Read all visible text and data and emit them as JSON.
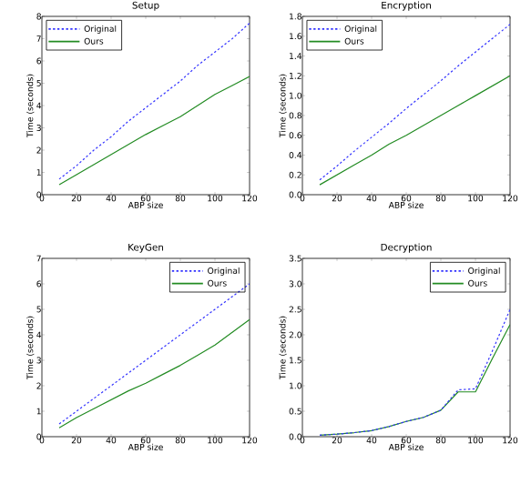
{
  "chart_data": [
    {
      "type": "line",
      "title": "Setup",
      "xlabel": "ABP size",
      "ylabel": "Time (seconds)",
      "x": [
        10,
        20,
        30,
        40,
        50,
        60,
        70,
        80,
        90,
        100,
        110,
        120
      ],
      "xlim": [
        0,
        120
      ],
      "xticks": [
        0,
        20,
        40,
        60,
        80,
        100,
        120
      ],
      "ylim": [
        0,
        8
      ],
      "yticks": [
        0,
        1,
        2,
        3,
        4,
        5,
        6,
        7,
        8
      ],
      "legend": "top left",
      "series": [
        {
          "name": "Original",
          "color": "#3333ff",
          "line_style": "dashed",
          "values": [
            0.7,
            1.3,
            2.0,
            2.6,
            3.3,
            3.9,
            4.5,
            5.1,
            5.8,
            6.4,
            7.0,
            7.7
          ]
        },
        {
          "name": "Ours",
          "color": "#228b22",
          "line_style": "solid",
          "values": [
            0.45,
            0.9,
            1.35,
            1.8,
            2.25,
            2.7,
            3.1,
            3.5,
            4.0,
            4.5,
            4.9,
            5.3
          ]
        }
      ]
    },
    {
      "type": "line",
      "title": "Encryption",
      "xlabel": "ABP size",
      "ylabel": "Time (seconds)",
      "x": [
        10,
        20,
        30,
        40,
        50,
        60,
        70,
        80,
        90,
        100,
        110,
        120
      ],
      "xlim": [
        0,
        120
      ],
      "xticks": [
        0,
        20,
        40,
        60,
        80,
        100,
        120
      ],
      "ylim": [
        0,
        1.8
      ],
      "yticks": [
        {
          "value": 0,
          "label": "0.0"
        },
        {
          "value": 0.2,
          "label": "0.2"
        },
        {
          "value": 0.4,
          "label": "0.4"
        },
        {
          "value": 0.6,
          "label": "0.6"
        },
        {
          "value": 0.8,
          "label": "0.8"
        },
        {
          "value": 1.0,
          "label": "1.0"
        },
        {
          "value": 1.2,
          "label": "1.2"
        },
        {
          "value": 1.4,
          "label": "1.4"
        },
        {
          "value": 1.6,
          "label": "1.6"
        },
        {
          "value": 1.8,
          "label": "1.8"
        }
      ],
      "legend": "top left",
      "series": [
        {
          "name": "Original",
          "color": "#3333ff",
          "line_style": "dashed",
          "values": [
            0.15,
            0.29,
            0.44,
            0.58,
            0.72,
            0.87,
            1.01,
            1.15,
            1.3,
            1.44,
            1.58,
            1.72
          ]
        },
        {
          "name": "Ours",
          "color": "#228b22",
          "line_style": "solid",
          "values": [
            0.1,
            0.2,
            0.3,
            0.4,
            0.51,
            0.6,
            0.7,
            0.8,
            0.9,
            1.0,
            1.1,
            1.2
          ]
        }
      ]
    },
    {
      "type": "line",
      "title": "KeyGen",
      "xlabel": "ABP size",
      "ylabel": "Time (seconds)",
      "x": [
        10,
        20,
        30,
        40,
        50,
        60,
        70,
        80,
        90,
        100,
        110,
        120
      ],
      "xlim": [
        0,
        120
      ],
      "xticks": [
        0,
        20,
        40,
        60,
        80,
        100,
        120
      ],
      "ylim": [
        0,
        7
      ],
      "yticks": [
        0,
        1,
        2,
        3,
        4,
        5,
        6,
        7
      ],
      "legend": "top right",
      "series": [
        {
          "name": "Original",
          "color": "#3333ff",
          "line_style": "dashed",
          "values": [
            0.5,
            1.0,
            1.5,
            2.0,
            2.5,
            3.0,
            3.5,
            4.0,
            4.5,
            5.0,
            5.5,
            6.0
          ]
        },
        {
          "name": "Ours",
          "color": "#228b22",
          "line_style": "solid",
          "values": [
            0.35,
            0.75,
            1.1,
            1.45,
            1.8,
            2.1,
            2.45,
            2.8,
            3.2,
            3.6,
            4.1,
            4.6
          ]
        }
      ]
    },
    {
      "type": "line",
      "title": "Decryption",
      "xlabel": "ABP size",
      "ylabel": "Time (seconds)",
      "x": [
        10,
        20,
        30,
        40,
        50,
        60,
        70,
        80,
        90,
        100,
        110,
        120
      ],
      "xlim": [
        0,
        120
      ],
      "xticks": [
        0,
        20,
        40,
        60,
        80,
        100,
        120
      ],
      "ylim": [
        0,
        3.5
      ],
      "yticks": [
        {
          "value": 0,
          "label": "0.0"
        },
        {
          "value": 0.5,
          "label": "0.5"
        },
        {
          "value": 1.0,
          "label": "1.0"
        },
        {
          "value": 1.5,
          "label": "1.5"
        },
        {
          "value": 2.0,
          "label": "2.0"
        },
        {
          "value": 2.5,
          "label": "2.5"
        },
        {
          "value": 3.0,
          "label": "3.0"
        },
        {
          "value": 3.5,
          "label": "3.5"
        }
      ],
      "legend": "top right",
      "series": [
        {
          "name": "Original",
          "color": "#3333ff",
          "line_style": "dashed",
          "values": [
            0.03,
            0.05,
            0.08,
            0.12,
            0.2,
            0.3,
            0.38,
            0.52,
            0.92,
            0.94,
            1.7,
            2.5
          ]
        },
        {
          "name": "Ours",
          "color": "#228b22",
          "line_style": "solid",
          "values": [
            0.03,
            0.05,
            0.08,
            0.12,
            0.2,
            0.3,
            0.38,
            0.52,
            0.88,
            0.88,
            1.55,
            2.2
          ]
        }
      ]
    }
  ]
}
